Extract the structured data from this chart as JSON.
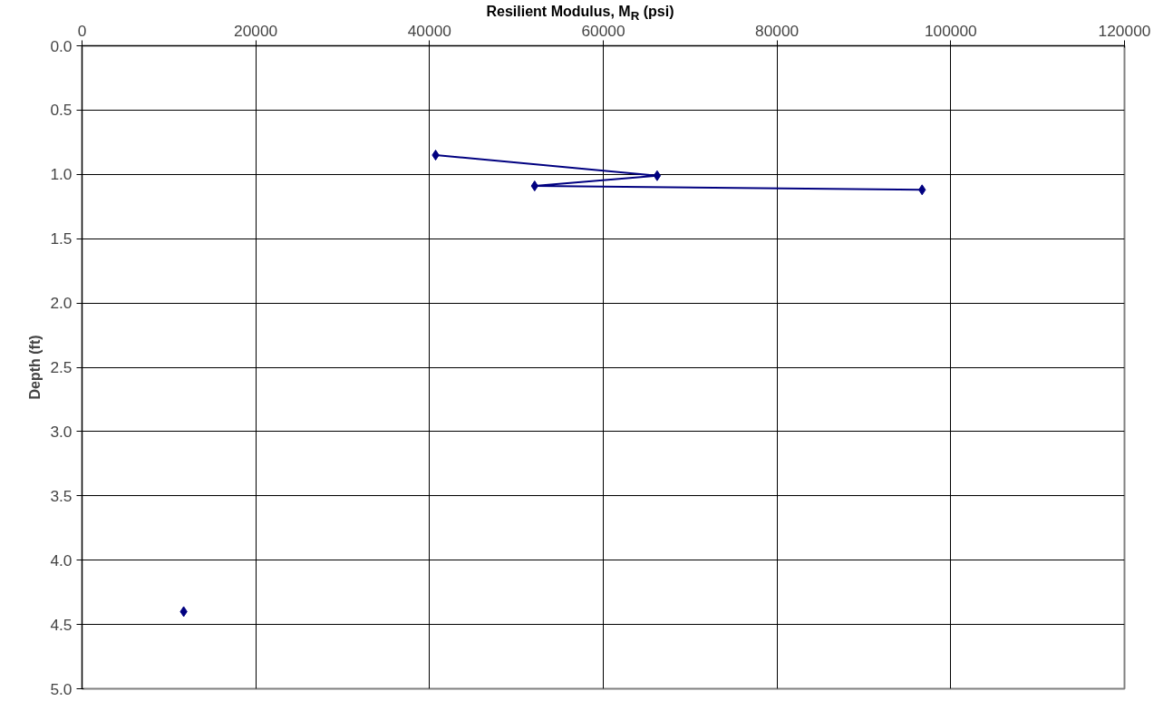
{
  "chart_data": {
    "type": "line",
    "xlabel": "Resilient Modulus, M$_{R}$ (psi)",
    "ylabel": "Depth (ft)",
    "xlim": [
      0,
      120000
    ],
    "xticks": [
      0,
      20000,
      40000,
      60000,
      80000,
      100000,
      120000
    ],
    "ylim": [
      5.0,
      0.0
    ],
    "yticks": [
      {
        "value": 0,
        "label": "0.0"
      },
      {
        "value": 0.5,
        "label": "0.5"
      },
      {
        "value": 1,
        "label": "1.0"
      },
      {
        "value": 1.5,
        "label": "1.5"
      },
      {
        "value": 2,
        "label": "2.0"
      },
      {
        "value": 2.5,
        "label": "2.5"
      },
      {
        "value": 3,
        "label": "3.0"
      },
      {
        "value": 3.5,
        "label": "3.5"
      },
      {
        "value": 4,
        "label": "4.0"
      },
      {
        "value": 4.5,
        "label": "4.5"
      },
      {
        "value": 5,
        "label": "5.0"
      }
    ],
    "grid": true,
    "marker": "diamond",
    "line_style": "solid",
    "series": [
      {
        "color": "#000080",
        "x": [
          40700,
          66200,
          52100,
          96700
        ],
        "values": [
          0.85,
          1.01,
          1.09,
          1.12
        ]
      },
      {
        "type": "scatter",
        "color": "#000080",
        "x": [
          11700
        ],
        "values": [
          4.4
        ]
      }
    ]
  }
}
